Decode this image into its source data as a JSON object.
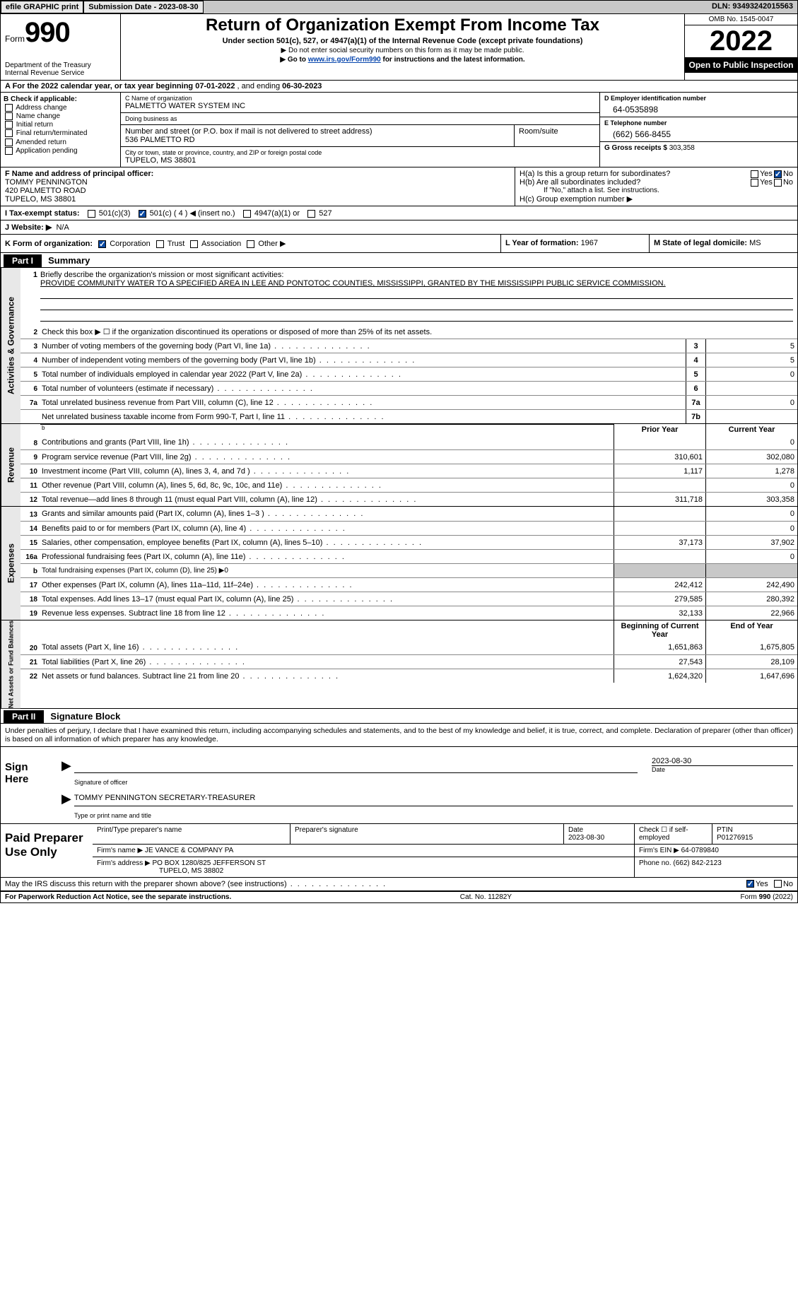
{
  "topbar": {
    "efile": "efile GRAPHIC print",
    "submission_label": "Submission Date - ",
    "submission_date": "2023-08-30",
    "dln_label": "DLN: ",
    "dln": "93493242015563"
  },
  "header": {
    "form_label": "Form",
    "form_no": "990",
    "dept": "Department of the Treasury\nInternal Revenue Service",
    "title": "Return of Organization Exempt From Income Tax",
    "sub1": "Under section 501(c), 527, or 4947(a)(1) of the Internal Revenue Code (except private foundations)",
    "sub2": "Do not enter social security numbers on this form as it may be made public.",
    "sub3_pre": "Go to ",
    "sub3_link": "www.irs.gov/Form990",
    "sub3_post": " for instructions and the latest information.",
    "omb": "OMB No. 1545-0047",
    "year": "2022",
    "inspection": "Open to Public Inspection"
  },
  "rowA": {
    "pre": "A For the 2022 calendar year, or tax year beginning ",
    "begin": "07-01-2022",
    "mid": " , and ending ",
    "end": "06-30-2023"
  },
  "B": {
    "label": "B Check if applicable:",
    "items": [
      "Address change",
      "Name change",
      "Initial return",
      "Final return/terminated",
      "Amended return",
      "Application pending"
    ]
  },
  "C": {
    "name_lab": "C Name of organization",
    "name": "PALMETTO WATER SYSTEM INC",
    "dba_lab": "Doing business as",
    "dba": "",
    "street_lab": "Number and street (or P.O. box if mail is not delivered to street address)",
    "room_lab": "Room/suite",
    "street": "536 PALMETTO RD",
    "city_lab": "City or town, state or province, country, and ZIP or foreign postal code",
    "city": "TUPELO, MS  38801"
  },
  "D": {
    "lab": "D Employer identification number",
    "val": "64-0535898"
  },
  "E": {
    "lab": "E Telephone number",
    "val": "(662) 566-8455"
  },
  "G": {
    "lab": "G Gross receipts $ ",
    "val": "303,358"
  },
  "F": {
    "lab": "F Name and address of principal officer:",
    "name": "TOMMY PENNINGTON",
    "addr1": "420 PALMETTO ROAD",
    "addr2": "TUPELO, MS  38801"
  },
  "H": {
    "a": "H(a)  Is this a group return for subordinates?",
    "b": "H(b)  Are all subordinates included?",
    "b_note": "If \"No,\" attach a list. See instructions.",
    "c": "H(c)  Group exemption number ▶",
    "yes": "Yes",
    "no": "No"
  },
  "I": {
    "lab": "I  Tax-exempt status:",
    "o1": "501(c)(3)",
    "o2": "501(c) ( 4 ) ◀ (insert no.)",
    "o3": "4947(a)(1) or",
    "o4": "527"
  },
  "J": {
    "lab": "J  Website: ▶",
    "val": "N/A"
  },
  "K": {
    "lab": "K Form of organization:",
    "o1": "Corporation",
    "o2": "Trust",
    "o3": "Association",
    "o4": "Other ▶"
  },
  "L": {
    "lab": "L Year of formation: ",
    "val": "1967"
  },
  "M": {
    "lab": "M State of legal domicile: ",
    "val": "MS"
  },
  "part1": {
    "hdr": "Part I",
    "title": "Summary"
  },
  "mission": {
    "num": "1",
    "lab": "Briefly describe the organization's mission or most significant activities:",
    "text": "PROVIDE COMMUNITY WATER TO A SPECIFIED AREA IN LEE AND PONTOTOC COUNTIES, MISSISSIPPI, GRANTED BY THE MISSISSIPPI PUBLIC SERVICE COMMISSION."
  },
  "vtabs": {
    "ag": "Activities & Governance",
    "rev": "Revenue",
    "exp": "Expenses",
    "net": "Net Assets or Fund Balances"
  },
  "lines_ag": [
    {
      "n": "2",
      "d": "Check this box ▶ ☐ if the organization discontinued its operations or disposed of more than 25% of its net assets."
    },
    {
      "n": "3",
      "d": "Number of voting members of the governing body (Part VI, line 1a)",
      "box": "3",
      "v": "5"
    },
    {
      "n": "4",
      "d": "Number of independent voting members of the governing body (Part VI, line 1b)",
      "box": "4",
      "v": "5"
    },
    {
      "n": "5",
      "d": "Total number of individuals employed in calendar year 2022 (Part V, line 2a)",
      "box": "5",
      "v": "0"
    },
    {
      "n": "6",
      "d": "Total number of volunteers (estimate if necessary)",
      "box": "6",
      "v": ""
    },
    {
      "n": "7a",
      "d": "Total unrelated business revenue from Part VIII, column (C), line 12",
      "box": "7a",
      "v": "0"
    },
    {
      "n": "",
      "d": "Net unrelated business taxable income from Form 990-T, Part I, line 11",
      "box": "7b",
      "v": ""
    }
  ],
  "col_hdr": {
    "prior": "Prior Year",
    "curr": "Current Year",
    "boy": "Beginning of Current Year",
    "eoy": "End of Year"
  },
  "lines_rev": [
    {
      "n": "8",
      "d": "Contributions and grants (Part VIII, line 1h)",
      "p": "",
      "c": "0"
    },
    {
      "n": "9",
      "d": "Program service revenue (Part VIII, line 2g)",
      "p": "310,601",
      "c": "302,080"
    },
    {
      "n": "10",
      "d": "Investment income (Part VIII, column (A), lines 3, 4, and 7d )",
      "p": "1,117",
      "c": "1,278"
    },
    {
      "n": "11",
      "d": "Other revenue (Part VIII, column (A), lines 5, 6d, 8c, 9c, 10c, and 11e)",
      "p": "",
      "c": "0"
    },
    {
      "n": "12",
      "d": "Total revenue—add lines 8 through 11 (must equal Part VIII, column (A), line 12)",
      "p": "311,718",
      "c": "303,358"
    }
  ],
  "lines_exp": [
    {
      "n": "13",
      "d": "Grants and similar amounts paid (Part IX, column (A), lines 1–3 )",
      "p": "",
      "c": "0"
    },
    {
      "n": "14",
      "d": "Benefits paid to or for members (Part IX, column (A), line 4)",
      "p": "",
      "c": "0"
    },
    {
      "n": "15",
      "d": "Salaries, other compensation, employee benefits (Part IX, column (A), lines 5–10)",
      "p": "37,173",
      "c": "37,902"
    },
    {
      "n": "16a",
      "d": "Professional fundraising fees (Part IX, column (A), line 11e)",
      "p": "",
      "c": "0"
    },
    {
      "n": "b",
      "d": "Total fundraising expenses (Part IX, column (D), line 25) ▶0",
      "grey": true
    },
    {
      "n": "17",
      "d": "Other expenses (Part IX, column (A), lines 11a–11d, 11f–24e)",
      "p": "242,412",
      "c": "242,490"
    },
    {
      "n": "18",
      "d": "Total expenses. Add lines 13–17 (must equal Part IX, column (A), line 25)",
      "p": "279,585",
      "c": "280,392"
    },
    {
      "n": "19",
      "d": "Revenue less expenses. Subtract line 18 from line 12",
      "p": "32,133",
      "c": "22,966"
    }
  ],
  "lines_net": [
    {
      "n": "20",
      "d": "Total assets (Part X, line 16)",
      "p": "1,651,863",
      "c": "1,675,805"
    },
    {
      "n": "21",
      "d": "Total liabilities (Part X, line 26)",
      "p": "27,543",
      "c": "28,109"
    },
    {
      "n": "22",
      "d": "Net assets or fund balances. Subtract line 21 from line 20",
      "p": "1,624,320",
      "c": "1,647,696"
    }
  ],
  "part2": {
    "hdr": "Part II",
    "title": "Signature Block"
  },
  "sig": {
    "decl": "Under penalties of perjury, I declare that I have examined this return, including accompanying schedules and statements, and to the best of my knowledge and belief, it is true, correct, and complete. Declaration of preparer (other than officer) is based on all information of which preparer has any knowledge.",
    "sign_here": "Sign Here",
    "sig_officer": "Signature of officer",
    "date_lab": "Date",
    "date": "2023-08-30",
    "name_title": "TOMMY PENNINGTON  SECRETARY-TREASURER",
    "name_title_lab": "Type or print name and title"
  },
  "paid": {
    "lab": "Paid Preparer Use Only",
    "r1": {
      "c1": "Print/Type preparer's name",
      "c2": "Preparer's signature",
      "c3_lab": "Date",
      "c3": "2023-08-30",
      "c4": "Check ☐ if self-employed",
      "c5_lab": "PTIN",
      "c5": "P01276915"
    },
    "r2": {
      "c1_lab": "Firm's name    ▶ ",
      "c1": "JE VANCE & COMPANY PA",
      "c2_lab": "Firm's EIN ▶ ",
      "c2": "64-0789840"
    },
    "r3": {
      "c1_lab": "Firm's address ▶ ",
      "c1a": "PO BOX 1280/825 JEFFERSON ST",
      "c1b": "TUPELO, MS  38802",
      "c2_lab": "Phone no. ",
      "c2": "(662) 842-2123"
    }
  },
  "discuss": {
    "q": "May the IRS discuss this return with the preparer shown above? (see instructions)",
    "yes": "Yes",
    "no": "No"
  },
  "footer": {
    "left": "For Paperwork Reduction Act Notice, see the separate instructions.",
    "mid": "Cat. No. 11282Y",
    "right": "Form 990 (2022)"
  }
}
